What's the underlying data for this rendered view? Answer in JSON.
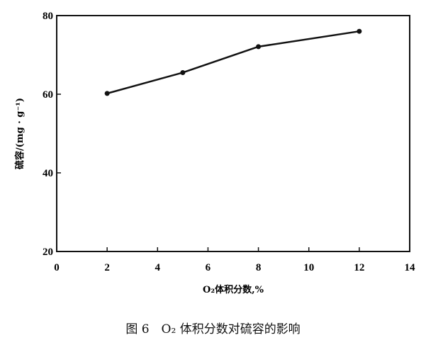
{
  "chart_data": {
    "type": "line",
    "xlabel": "O₂体积分数,%",
    "ylabel": "硫容/(mg · g⁻¹)",
    "xlim": [
      0,
      14
    ],
    "ylim": [
      20,
      80
    ],
    "xticks": [
      0,
      2,
      4,
      6,
      8,
      10,
      12,
      14
    ],
    "yticks": [
      20,
      40,
      60,
      80
    ],
    "grid": false,
    "x": [
      2,
      5,
      8,
      12
    ],
    "series": [
      {
        "values": [
          60.2,
          65.5,
          72.1,
          76.0
        ],
        "color": "#111111"
      }
    ]
  },
  "caption": "图 6　O₂ 体积分数对硫容的影响"
}
